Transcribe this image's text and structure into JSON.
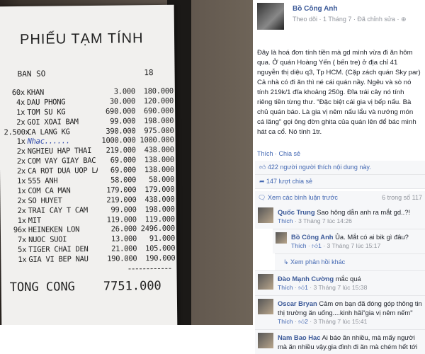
{
  "receipt": {
    "title": "PHIẾU TẠM TÍNH",
    "table_label": "BAN SO",
    "table_no": "18",
    "items": [
      {
        "qty": "60x",
        "name": "KHAN",
        "price": "3.000",
        "total": "180.000"
      },
      {
        "qty": "4x",
        "name": "DAU PHONG",
        "price": "30.000",
        "total": "120.000"
      },
      {
        "qty": "1x",
        "name": "TOM SU KG",
        "price": "690.000",
        "total": "690.000"
      },
      {
        "qty": "2x",
        "name": "GOI XOAI BAM",
        "price": "99.000",
        "total": "198.000"
      },
      {
        "qty": "2.500x",
        "name": "CA LANG KG",
        "price": "390.000",
        "total": "975.000"
      },
      {
        "qty": "1x",
        "name": "Nhac......",
        "price": "1000.000",
        "total": "1000.000"
      },
      {
        "qty": "2x",
        "name": "NGHIEU HAP THAI",
        "price": "219.000",
        "total": "438.000"
      },
      {
        "qty": "2x",
        "name": "COM VAY GIAY BAC",
        "price": "69.000",
        "total": "138.000"
      },
      {
        "qty": "2x",
        "name": "CA ROT DUA UOP LANH",
        "price": "69.000",
        "total": "138.000"
      },
      {
        "qty": "1x",
        "name": "555 ANH",
        "price": "58.000",
        "total": "58.000"
      },
      {
        "qty": "1x",
        "name": "COM CA MAN",
        "price": "179.000",
        "total": "179.000"
      },
      {
        "qty": "2x",
        "name": "SO HUYET",
        "price": "219.000",
        "total": "438.000"
      },
      {
        "qty": "2x",
        "name": "TRAI CAY T CAM",
        "price": "99.000",
        "total": "198.000"
      },
      {
        "qty": "1x",
        "name": "MIT",
        "price": "119.000",
        "total": "119.000"
      },
      {
        "qty": "96x",
        "name": "HEINEKEN LON",
        "price": "26.000",
        "total": "2496.000"
      },
      {
        "qty": "7x",
        "name": "NUOC SUOI",
        "price": "13.000",
        "total": "91.000"
      },
      {
        "qty": "5x",
        "name": "TIGER CHAI DEN",
        "price": "21.000",
        "total": "105.000"
      },
      {
        "qty": "1x",
        "name": "GIA VI BEP NAU",
        "price": "190.000",
        "total": "190.000"
      }
    ],
    "total_label": "TONG CONG",
    "total": "7751.000"
  },
  "post": {
    "author": "Bồ Công Anh",
    "meta": "Theo dõi · 1 Tháng 7 · Đã chỉnh sửa · ⊕",
    "text": "Đây là hoá đơn tính tiền mà gd mình vừa đi ăn hôm qua. Ở quán Hoàng Yến ( bến tre) ở địa chỉ 41 nguyễn thị diệu q3, Tp HCM. (Cặp zách quán Sky par) Cả nhà có đi ăn thì né cái quán nầy. Ngêu và sò nó tính 219k/1 đĩa khoảng 250g. Đĩa trái cây nó tính riêng tiền từng thư. \"Đặc biệt cái gia vị bếp nấu. Bà chủ quán báo. Là gia vị nêm nấu lẩu và nướng món cá lăng\" gọi ông đờn ghita của quán lên để bác mình hát ca cổ. Nó tính 1tr.",
    "like": "Thích",
    "share": "Chia sẻ",
    "likes": "422 người người thích nội dung này.",
    "shares": "147 lượt chia sẻ",
    "prev_comments": "Xem các bình luận trước",
    "comment_count": "6 trong số 117",
    "more_replies": "Xem phản hồi khác"
  },
  "comments": [
    {
      "name": "Quốc Trung",
      "text": "Sao hông dẫn anh ra mắt gd..?!",
      "likes": "",
      "time": "3 Tháng 7 lúc 14:26"
    },
    {
      "name": "Bồ Công Anh",
      "text": "Ủa. Mắt có ai bik gì đâu?",
      "likes": "1",
      "time": "3 Tháng 7 lúc 15:17"
    },
    {
      "name": "Đào Mạnh Cường",
      "text": "mắc quá",
      "likes": "1",
      "time": "3 Tháng 7 lúc 15:38"
    },
    {
      "name": "Oscar Bryan",
      "text": "Cảm ơn bạn đã đóng góp thông tin thị trường ăn uống....kinh hãi\"gia vị nêm nếm\"",
      "likes": "2",
      "time": "3 Tháng 7 lúc 15:41"
    },
    {
      "name": "Nam Bao Hac",
      "text": "Ai báo ăn nhiều, mà mấy người mà ăn nhiều vậy.gia đình đi ăn mà chém hết tới",
      "likes": "",
      "time": ""
    }
  ]
}
